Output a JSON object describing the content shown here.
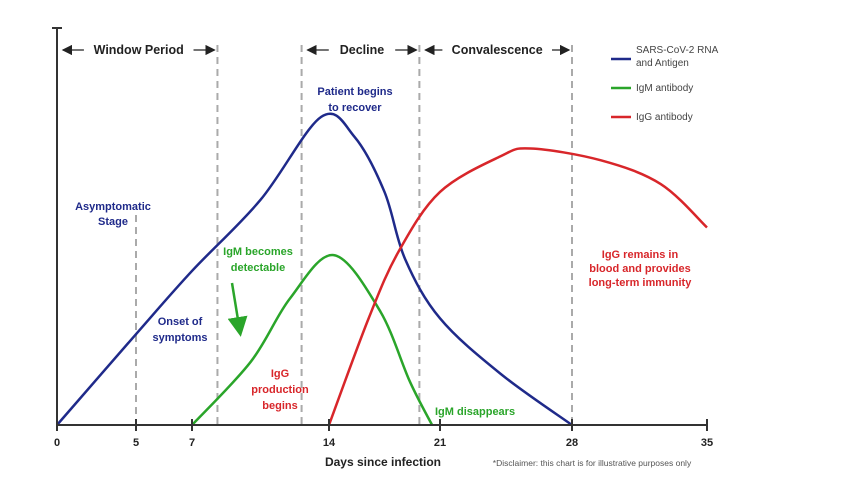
{
  "chart_data": {
    "type": "line",
    "xlabel": "Days since infection",
    "ylabel": "",
    "x_ticks": [
      0,
      5,
      7,
      14,
      21,
      28,
      35
    ],
    "xlim": [
      0,
      35
    ],
    "grid": false,
    "legend_position": "top-right",
    "series": [
      {
        "name": "SARS-CoV-2 RNA and Antigen",
        "name_lines": [
          "SARS-CoV-2 RNA",
          "and Antigen"
        ],
        "color": "#1f2a8a",
        "points": [
          [
            0,
            0
          ],
          [
            5,
            23
          ],
          [
            7,
            39
          ],
          [
            10.5,
            57
          ],
          [
            13.6,
            78
          ],
          [
            15.6,
            73
          ],
          [
            17.5,
            59
          ],
          [
            18.8,
            42
          ],
          [
            21,
            27
          ],
          [
            24.2,
            13
          ],
          [
            28,
            0
          ]
        ]
      },
      {
        "name": "IgM antibody",
        "color": "#2aa52a",
        "points": [
          [
            7,
            0
          ],
          [
            10,
            16
          ],
          [
            12,
            32
          ],
          [
            14.3,
            43
          ],
          [
            17.2,
            29
          ],
          [
            19.1,
            11
          ],
          [
            20.5,
            0
          ]
        ]
      },
      {
        "name": "IgG antibody",
        "color": "#d8262a",
        "points": [
          [
            14,
            0
          ],
          [
            16.5,
            27
          ],
          [
            18.4,
            44
          ],
          [
            21,
            59
          ],
          [
            24.2,
            68
          ],
          [
            25.8,
            70
          ],
          [
            29.5,
            67
          ],
          [
            32.6,
            61
          ],
          [
            35,
            50
          ]
        ]
      }
    ],
    "phases": [
      {
        "label": "Window Period",
        "from": 0,
        "to": 8.3
      },
      {
        "label": "Decline",
        "from": 12.6,
        "to": 19.7
      },
      {
        "label": "Convalescence",
        "from": 19.7,
        "to": 28
      }
    ],
    "dashed_lines": [
      5,
      8.3,
      12.6,
      19.7,
      28
    ],
    "annotations": {
      "asymptomatic": [
        "Asymptomatic",
        "Stage"
      ],
      "onset": [
        "Onset of",
        "symptoms"
      ],
      "recover": [
        "Patient begins",
        "to recover"
      ],
      "igm_detect": [
        "IgM becomes",
        "detectable"
      ],
      "igg_prod": [
        "IgG",
        "production",
        "begins"
      ],
      "igm_disappears": "IgM disappears",
      "igg_remains": [
        "IgG remains in",
        "blood and provides",
        "long-term immunity"
      ]
    },
    "disclaimer": "*Disclaimer: this chart is for illustrative purposes only"
  }
}
